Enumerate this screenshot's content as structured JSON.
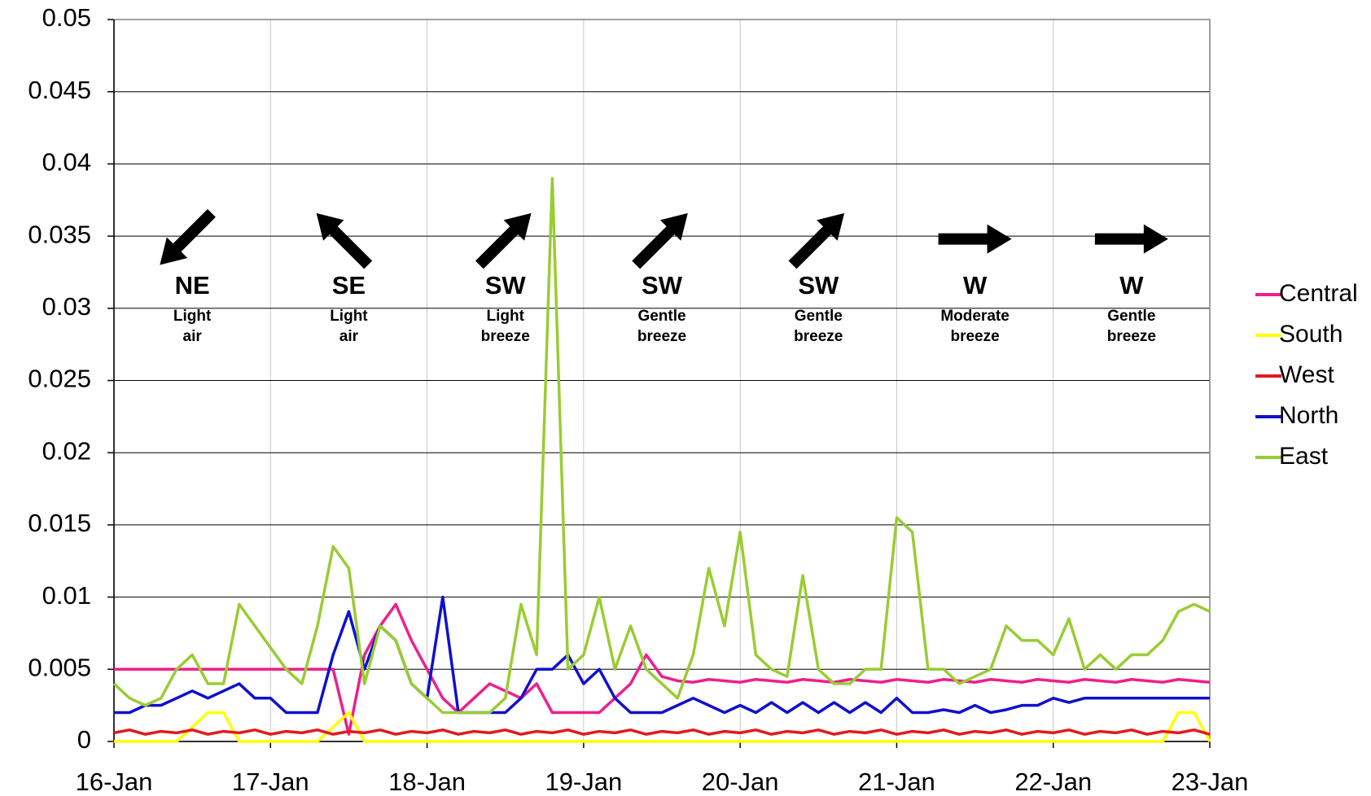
{
  "chart_data": {
    "type": "line",
    "x": [
      0,
      0.1,
      0.2,
      0.3,
      0.4,
      0.5,
      0.6,
      0.7,
      0.8,
      0.9,
      1,
      1.1,
      1.2,
      1.3,
      1.4,
      1.5,
      1.6,
      1.7,
      1.8,
      1.9,
      2,
      2.1,
      2.2,
      2.3,
      2.4,
      2.5,
      2.6,
      2.7,
      2.8,
      2.9,
      3,
      3.1,
      3.2,
      3.3,
      3.4,
      3.5,
      3.6,
      3.7,
      3.8,
      3.9,
      4,
      4.1,
      4.2,
      4.3,
      4.4,
      4.5,
      4.6,
      4.7,
      4.8,
      4.9,
      5,
      5.1,
      5.2,
      5.3,
      5.4,
      5.5,
      5.6,
      5.7,
      5.8,
      5.9,
      6,
      6.1,
      6.2,
      6.3,
      6.4,
      6.5,
      6.6,
      6.7,
      6.8,
      6.9,
      7
    ],
    "xlim": [
      0,
      7
    ],
    "xticks": [
      {
        "value": 0,
        "label": "16-Jan"
      },
      {
        "value": 1,
        "label": "17-Jan"
      },
      {
        "value": 2,
        "label": "18-Jan"
      },
      {
        "value": 3,
        "label": "19-Jan"
      },
      {
        "value": 4,
        "label": "20-Jan"
      },
      {
        "value": 5,
        "label": "21-Jan"
      },
      {
        "value": 6,
        "label": "22-Jan"
      },
      {
        "value": 7,
        "label": "23-Jan"
      }
    ],
    "ylim": [
      0,
      0.05
    ],
    "yticks": [
      0,
      0.005,
      0.01,
      0.015,
      0.02,
      0.025,
      0.03,
      0.035,
      0.04,
      0.045,
      0.05
    ],
    "grid": true,
    "legend": "right",
    "series": [
      {
        "name": "Central",
        "color": "#ee1f8c",
        "values": [
          0.005,
          0.005,
          0.005,
          0.005,
          0.005,
          0.005,
          0.005,
          0.005,
          0.005,
          0.005,
          0.005,
          0.005,
          0.005,
          0.005,
          0.005,
          0.0005,
          0.006,
          0.008,
          0.0095,
          0.007,
          0.005,
          0.003,
          0.002,
          0.003,
          0.004,
          0.0035,
          0.003,
          0.004,
          0.002,
          0.002,
          0.002,
          0.002,
          0.003,
          0.004,
          0.006,
          0.0045,
          0.0042,
          0.0041,
          0.0043,
          0.0042,
          0.0041,
          0.0043,
          0.0042,
          0.0041,
          0.0043,
          0.0042,
          0.0041,
          0.0043,
          0.0042,
          0.0041,
          0.0043,
          0.0042,
          0.0041,
          0.0043,
          0.0042,
          0.0041,
          0.0043,
          0.0042,
          0.0041,
          0.0043,
          0.0042,
          0.0041,
          0.0043,
          0.0042,
          0.0041,
          0.0043,
          0.0042,
          0.0041,
          0.0043,
          0.0042,
          0.0041
        ]
      },
      {
        "name": "South",
        "color": "#ffff00",
        "values": [
          0,
          0,
          0,
          0,
          0,
          0.001,
          0.002,
          0.002,
          0,
          0,
          0,
          0,
          0,
          0,
          0.001,
          0.002,
          0,
          0,
          0,
          0,
          0,
          0,
          0,
          0,
          0,
          0,
          0,
          0,
          0,
          0,
          0,
          0,
          0,
          0,
          0,
          0,
          0,
          0,
          0,
          0,
          0,
          0,
          0,
          0,
          0,
          0,
          0,
          0,
          0,
          0,
          0,
          0,
          0,
          0,
          0,
          0,
          0,
          0,
          0,
          0,
          0,
          0,
          0,
          0,
          0,
          0,
          0,
          0,
          0.002,
          0.002,
          0
        ]
      },
      {
        "name": "West",
        "color": "#e31a1c",
        "values": [
          0.0006,
          0.0008,
          0.0005,
          0.0007,
          0.0006,
          0.0008,
          0.0005,
          0.0007,
          0.0006,
          0.0008,
          0.0005,
          0.0007,
          0.0006,
          0.0008,
          0.0005,
          0.0007,
          0.0006,
          0.0008,
          0.0005,
          0.0007,
          0.0006,
          0.0008,
          0.0005,
          0.0007,
          0.0006,
          0.0008,
          0.0005,
          0.0007,
          0.0006,
          0.0008,
          0.0005,
          0.0007,
          0.0006,
          0.0008,
          0.0005,
          0.0007,
          0.0006,
          0.0008,
          0.0005,
          0.0007,
          0.0006,
          0.0008,
          0.0005,
          0.0007,
          0.0006,
          0.0008,
          0.0005,
          0.0007,
          0.0006,
          0.0008,
          0.0005,
          0.0007,
          0.0006,
          0.0008,
          0.0005,
          0.0007,
          0.0006,
          0.0008,
          0.0005,
          0.0007,
          0.0006,
          0.0008,
          0.0005,
          0.0007,
          0.0006,
          0.0008,
          0.0005,
          0.0007,
          0.0006,
          0.0008,
          0.0005
        ]
      },
      {
        "name": "North",
        "color": "#1010cc",
        "values": [
          0.002,
          0.002,
          0.0025,
          0.0025,
          0.003,
          0.0035,
          0.003,
          0.0035,
          0.004,
          0.003,
          0.003,
          0.002,
          0.002,
          0.002,
          0.006,
          0.009,
          0.005,
          0.008,
          0.007,
          0.004,
          0.003,
          0.01,
          0.002,
          0.002,
          0.002,
          0.002,
          0.003,
          0.005,
          0.005,
          0.006,
          0.004,
          0.005,
          0.003,
          0.002,
          0.002,
          0.002,
          0.0025,
          0.003,
          0.0025,
          0.002,
          0.0025,
          0.002,
          0.0027,
          0.002,
          0.0027,
          0.002,
          0.0027,
          0.002,
          0.0027,
          0.002,
          0.003,
          0.002,
          0.002,
          0.0022,
          0.002,
          0.0025,
          0.002,
          0.0022,
          0.0025,
          0.0025,
          0.003,
          0.0027,
          0.003,
          0.003,
          0.003,
          0.003,
          0.003,
          0.003,
          0.003,
          0.003,
          0.003
        ]
      },
      {
        "name": "East",
        "color": "#99cc33",
        "values": [
          0.004,
          0.003,
          0.0025,
          0.003,
          0.005,
          0.006,
          0.004,
          0.004,
          0.0095,
          0.008,
          0.0065,
          0.005,
          0.004,
          0.008,
          0.0135,
          0.012,
          0.004,
          0.008,
          0.007,
          0.004,
          0.003,
          0.002,
          0.002,
          0.002,
          0.002,
          0.003,
          0.0095,
          0.006,
          0.039,
          0.005,
          0.006,
          0.01,
          0.005,
          0.008,
          0.005,
          0.004,
          0.003,
          0.006,
          0.012,
          0.008,
          0.0145,
          0.006,
          0.005,
          0.0045,
          0.0115,
          0.005,
          0.004,
          0.004,
          0.005,
          0.005,
          0.0155,
          0.0145,
          0.005,
          0.005,
          0.004,
          0.0045,
          0.005,
          0.008,
          0.007,
          0.007,
          0.006,
          0.0085,
          0.005,
          0.006,
          0.005,
          0.006,
          0.006,
          0.007,
          0.009,
          0.0095,
          0.009
        ]
      }
    ],
    "annotations": [
      {
        "direction": "NE",
        "wind": "Light air"
      },
      {
        "direction": "SE",
        "wind": "Light air"
      },
      {
        "direction": "SW",
        "wind": "Light breeze"
      },
      {
        "direction": "SW",
        "wind": "Gentle breeze"
      },
      {
        "direction": "SW",
        "wind": "Gentle breeze"
      },
      {
        "direction": "W",
        "wind": "Moderate breeze"
      },
      {
        "direction": "W",
        "wind": "Gentle breeze"
      }
    ]
  }
}
